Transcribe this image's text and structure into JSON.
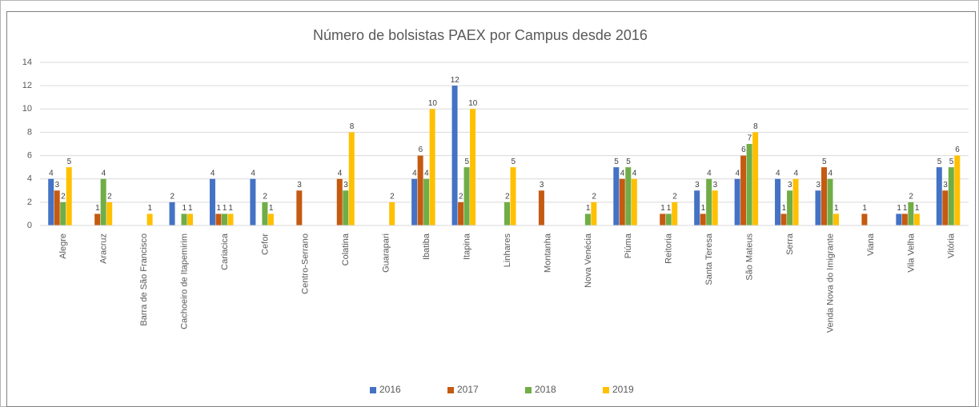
{
  "chart_data": {
    "type": "bar",
    "title": "Número de bolsistas PAEX por Campus desde 2016",
    "categories": [
      "Alegre",
      "Aracruz",
      "Barra de São Francisco",
      "Cachoeiro de Itapemirim",
      "Cariacica",
      "Cefor",
      "Centro-Serrano",
      "Colatina",
      "Guarapari",
      "Ibatiba",
      "Itapina",
      "Linhares",
      "Montanha",
      "Nova Venécia",
      "Piúma",
      "Reitoria",
      "Santa Teresa",
      "São Mateus",
      "Serra",
      "Venda Nova do Imigrante",
      "Viana",
      "Vila Velha",
      "Vitória"
    ],
    "series": [
      {
        "name": "2016",
        "color": "#4472c4",
        "values": [
          4,
          null,
          null,
          2,
          4,
          4,
          null,
          null,
          null,
          4,
          12,
          null,
          null,
          null,
          5,
          null,
          3,
          4,
          4,
          3,
          null,
          1,
          5
        ]
      },
      {
        "name": "2017",
        "color": "#c55a11",
        "values": [
          3,
          1,
          null,
          null,
          1,
          null,
          3,
          4,
          null,
          6,
          2,
          null,
          3,
          null,
          4,
          1,
          1,
          6,
          1,
          5,
          1,
          1,
          3
        ]
      },
      {
        "name": "2018",
        "color": "#70ad47",
        "values": [
          2,
          4,
          null,
          1,
          1,
          2,
          null,
          3,
          null,
          4,
          5,
          2,
          null,
          1,
          5,
          1,
          4,
          7,
          3,
          4,
          null,
          2,
          5
        ]
      },
      {
        "name": "2019",
        "color": "#ffc000",
        "values": [
          5,
          2,
          1,
          1,
          1,
          1,
          null,
          8,
          2,
          10,
          10,
          5,
          null,
          2,
          4,
          2,
          3,
          8,
          4,
          1,
          null,
          1,
          6
        ]
      }
    ],
    "ylim": [
      0,
      14
    ],
    "yticks": [
      0,
      2,
      4,
      6,
      8,
      10,
      12,
      14
    ],
    "grid": true,
    "legend": "bottom"
  }
}
